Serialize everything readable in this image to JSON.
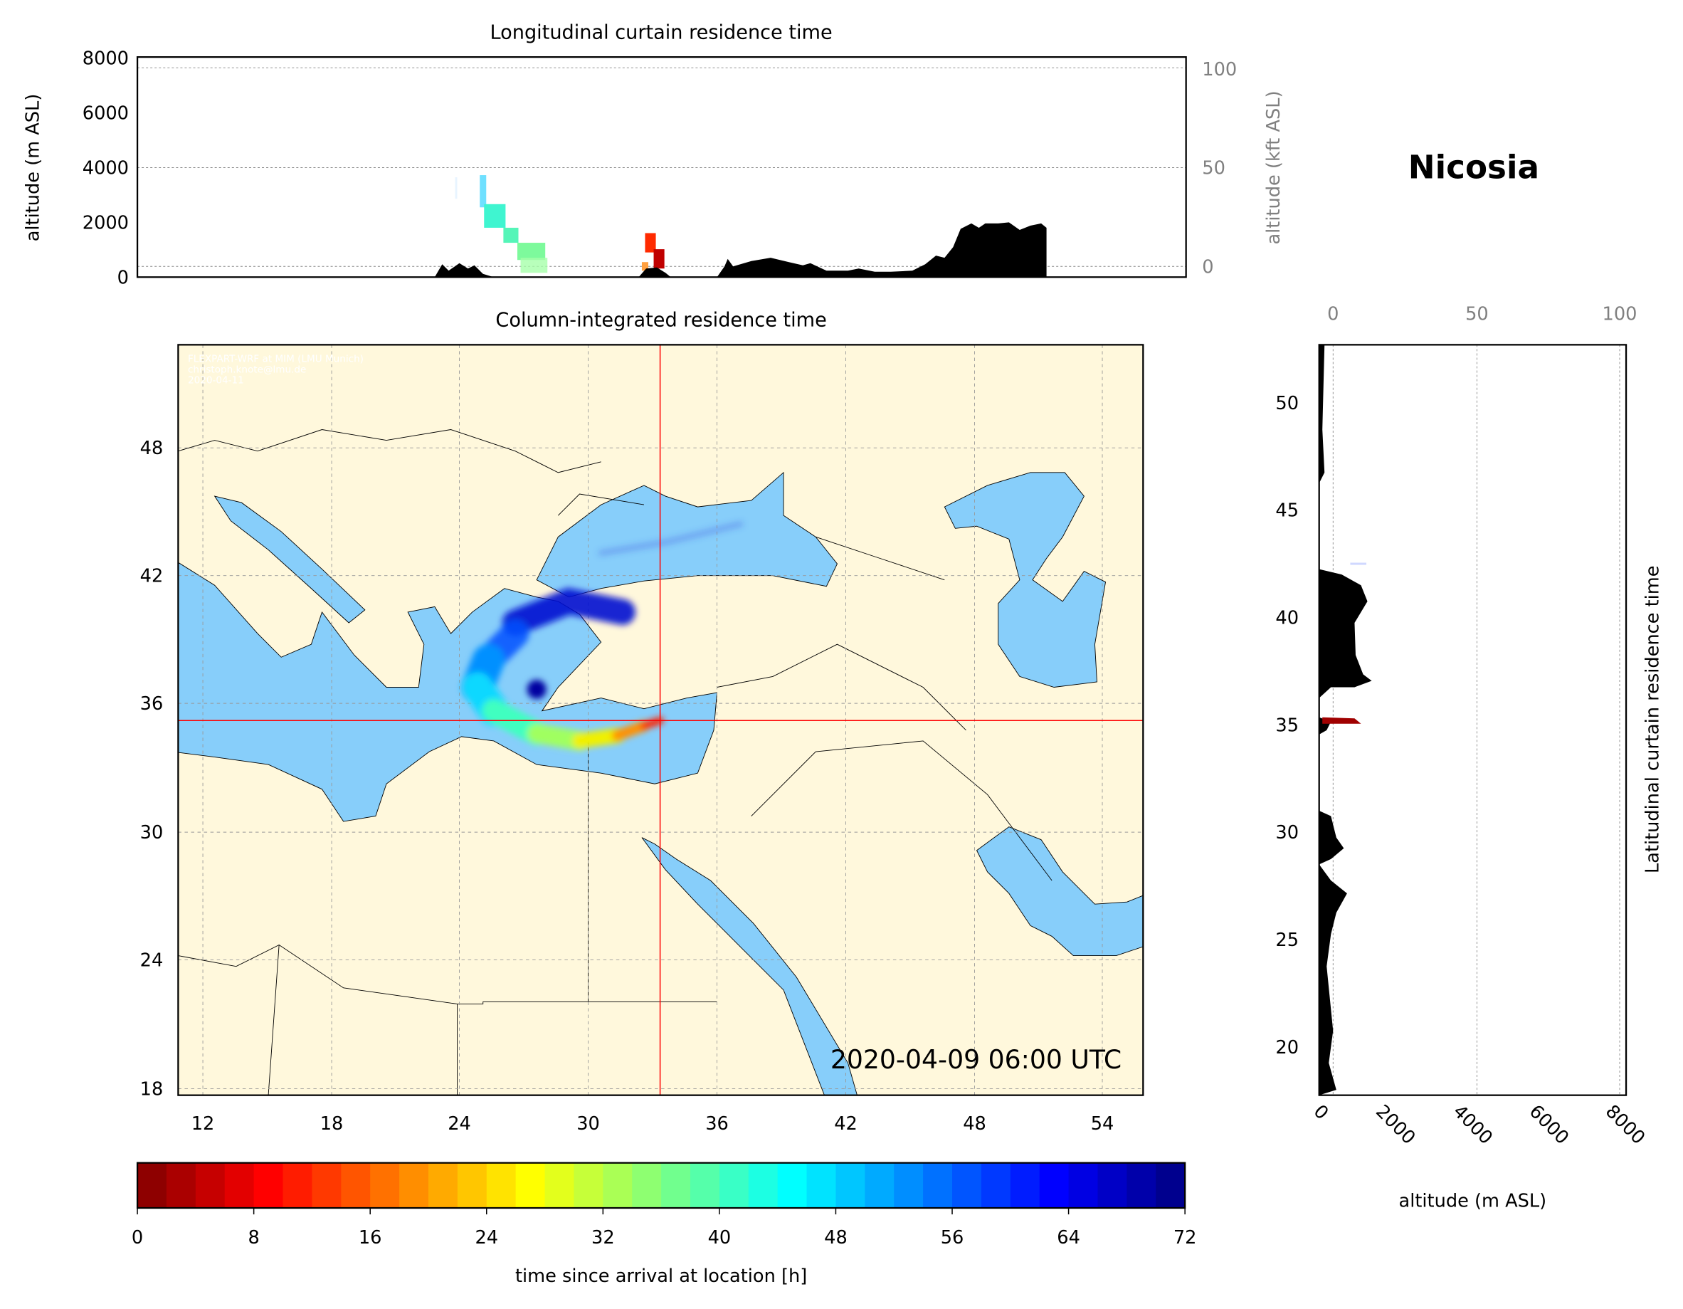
{
  "location_title": "Nicosia",
  "timestamp": "2020-04-09 06:00 UTC",
  "credit": [
    "FLEXPART-WRF at MIM (LMU Munich)",
    "christoph.knote@lmu.de",
    "2020-04-11"
  ],
  "colors": {
    "land": "#FFF8DC",
    "water": "#87CEFA",
    "terrain": "#000000",
    "crosshair": "#FF0000"
  },
  "chart_data": [
    {
      "type": "heatmap",
      "title": "Longitudinal curtain residence time",
      "ylabel": "altitude (m ASL)",
      "ylabel_right": "altitude (kft ASL)",
      "ylim": [
        0,
        8000
      ],
      "yticks": [
        "0",
        "2000",
        "4000",
        "6000",
        "8000"
      ],
      "yticks_right": [
        "0",
        "50",
        "100"
      ],
      "grid": true
    },
    {
      "type": "heatmap",
      "title": "Column-integrated residence time",
      "xticks": [
        "12",
        "18",
        "24",
        "30",
        "36",
        "42",
        "48",
        "54"
      ],
      "yticks": [
        "18",
        "24",
        "30",
        "36",
        "42",
        "48"
      ],
      "xlim": [
        10.9,
        55.9
      ],
      "ylim": [
        17.7,
        52.8
      ],
      "crosshair": {
        "lon": 33.35,
        "lat": 35.2
      },
      "grid": true
    },
    {
      "type": "heatmap",
      "title": "Latitudinal curtain residence time",
      "xlabel": "altitude (m ASL)",
      "xticks": [
        "0",
        "2000",
        "4000",
        "6000",
        "8000"
      ],
      "xticks_top": [
        "0",
        "50",
        "100"
      ],
      "yticks": [
        "20",
        "25",
        "30",
        "35",
        "40",
        "45",
        "50"
      ],
      "xlim": [
        0,
        8000
      ],
      "grid": true
    },
    {
      "type": "colorbar",
      "colormap": "jet",
      "xlabel": "time since arrival at location [h]",
      "range": [
        0,
        72
      ],
      "ticks": [
        "0",
        "8",
        "16",
        "24",
        "32",
        "40",
        "48",
        "56",
        "64",
        "72"
      ]
    }
  ]
}
